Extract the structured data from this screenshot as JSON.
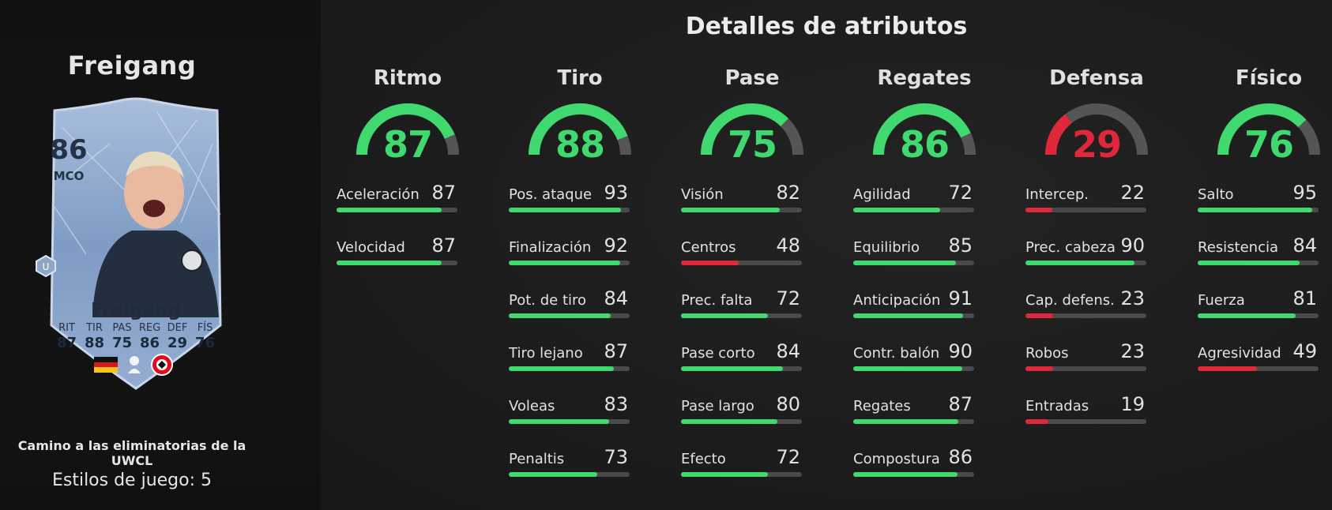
{
  "player": {
    "title": "Freigang",
    "card": {
      "rating": "86",
      "position": "MCO",
      "name": "Freigang",
      "stat_labels": [
        "RIT",
        "TIR",
        "PAS",
        "REG",
        "DEF",
        "FÍS"
      ],
      "stat_values": [
        "87",
        "88",
        "75",
        "86",
        "29",
        "76"
      ]
    },
    "set_name": "Camino a las eliminatorias de la UWCL",
    "playstyles": "Estilos de juego: 5"
  },
  "colors": {
    "green": "#3fd96f",
    "red": "#e0283a",
    "track": "#4a4a4a",
    "gauge_track": "#555555"
  },
  "section_title": "Detalles de atributos",
  "categories": [
    {
      "name": "Ritmo",
      "value": 87,
      "color": "green",
      "stats": [
        {
          "label": "Aceleración",
          "value": 87,
          "color": "green"
        },
        {
          "label": "Velocidad",
          "value": 87,
          "color": "green"
        }
      ]
    },
    {
      "name": "Tiro",
      "value": 88,
      "color": "green",
      "stats": [
        {
          "label": "Pos. ataque",
          "value": 93,
          "color": "green"
        },
        {
          "label": "Finalización",
          "value": 92,
          "color": "green"
        },
        {
          "label": "Pot. de tiro",
          "value": 84,
          "color": "green"
        },
        {
          "label": "Tiro lejano",
          "value": 87,
          "color": "green"
        },
        {
          "label": "Voleas",
          "value": 83,
          "color": "green"
        },
        {
          "label": "Penaltis",
          "value": 73,
          "color": "green"
        }
      ]
    },
    {
      "name": "Pase",
      "value": 75,
      "color": "green",
      "stats": [
        {
          "label": "Visión",
          "value": 82,
          "color": "green"
        },
        {
          "label": "Centros",
          "value": 48,
          "color": "red"
        },
        {
          "label": "Prec. falta",
          "value": 72,
          "color": "green"
        },
        {
          "label": "Pase corto",
          "value": 84,
          "color": "green"
        },
        {
          "label": "Pase largo",
          "value": 80,
          "color": "green"
        },
        {
          "label": "Efecto",
          "value": 72,
          "color": "green"
        }
      ]
    },
    {
      "name": "Regates",
      "value": 86,
      "color": "green",
      "stats": [
        {
          "label": "Agilidad",
          "value": 72,
          "color": "green"
        },
        {
          "label": "Equilibrio",
          "value": 85,
          "color": "green"
        },
        {
          "label": "Anticipación",
          "value": 91,
          "color": "green"
        },
        {
          "label": "Contr. balón",
          "value": 90,
          "color": "green"
        },
        {
          "label": "Regates",
          "value": 87,
          "color": "green"
        },
        {
          "label": "Compostura",
          "value": 86,
          "color": "green"
        }
      ]
    },
    {
      "name": "Defensa",
      "value": 29,
      "color": "red",
      "stats": [
        {
          "label": "Intercep.",
          "value": 22,
          "color": "red"
        },
        {
          "label": "Prec. cabeza",
          "value": 90,
          "color": "green"
        },
        {
          "label": "Cap. defens.",
          "value": 23,
          "color": "red"
        },
        {
          "label": "Robos",
          "value": 23,
          "color": "red"
        },
        {
          "label": "Entradas",
          "value": 19,
          "color": "red"
        }
      ]
    },
    {
      "name": "Físico",
      "value": 76,
      "color": "green",
      "stats": [
        {
          "label": "Salto",
          "value": 95,
          "color": "green"
        },
        {
          "label": "Resistencia",
          "value": 84,
          "color": "green"
        },
        {
          "label": "Fuerza",
          "value": 81,
          "color": "green"
        },
        {
          "label": "Agresividad",
          "value": 49,
          "color": "red"
        }
      ]
    }
  ]
}
